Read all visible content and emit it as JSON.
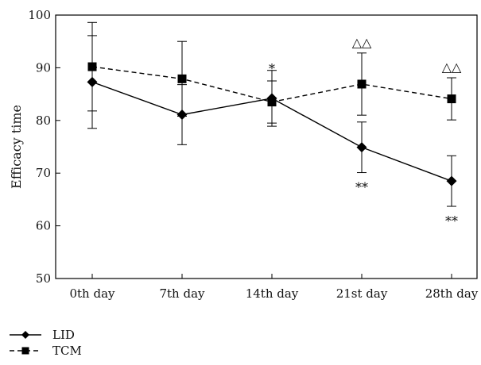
{
  "chart_data": {
    "type": "line",
    "title": "",
    "xlabel": "",
    "ylabel": "Efficacy time",
    "categories": [
      "0th day",
      "7th day",
      "14th day",
      "21st day",
      "28th day"
    ],
    "ylim": [
      50,
      100
    ],
    "yticks": [
      50,
      60,
      70,
      80,
      90,
      100
    ],
    "grid": false,
    "legend_position": "bottom-left",
    "series": [
      {
        "name": "LID",
        "marker": "diamond",
        "line_style": "solid",
        "color": "#000000",
        "values": [
          87.3,
          81.1,
          84.2,
          74.9,
          68.5
        ],
        "error": [
          8.8,
          5.7,
          5.3,
          4.8,
          4.8
        ],
        "annotations": [
          "",
          "",
          "",
          "**",
          "**"
        ]
      },
      {
        "name": "TCM",
        "marker": "square",
        "line_style": "dashed",
        "color": "#000000",
        "values": [
          90.2,
          87.9,
          83.5,
          86.9,
          84.1
        ],
        "error": [
          8.4,
          7.1,
          4.0,
          5.9,
          4.0
        ],
        "annotations": [
          "",
          "",
          "*",
          "△△",
          "△△"
        ]
      }
    ]
  }
}
